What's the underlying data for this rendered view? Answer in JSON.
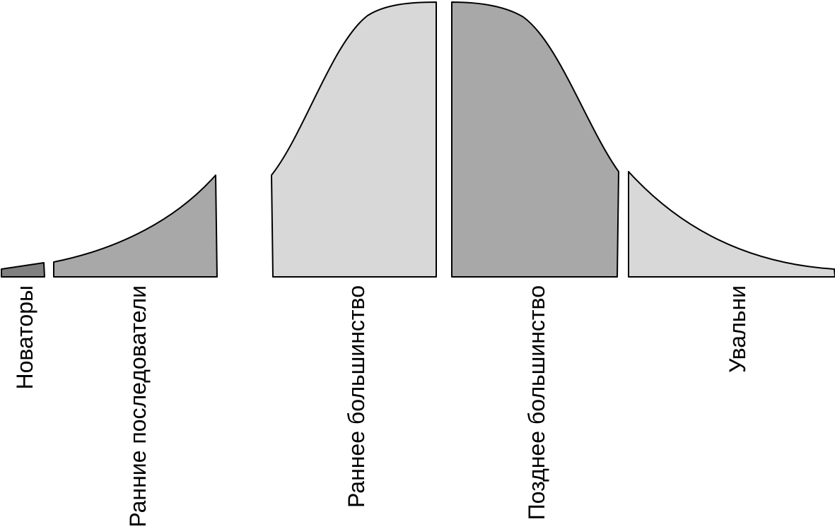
{
  "diagram": {
    "segments": [
      {
        "label": "Новаторы",
        "fill": "#808080"
      },
      {
        "label": "Ранние последователи",
        "fill": "#a8a8a8"
      },
      {
        "label": "Раннее большинство",
        "fill": "#d8d8d8"
      },
      {
        "label": "Позднее большинство",
        "fill": "#a8a8a8"
      },
      {
        "label": "Увальни",
        "fill": "#d8d8d8"
      }
    ]
  }
}
